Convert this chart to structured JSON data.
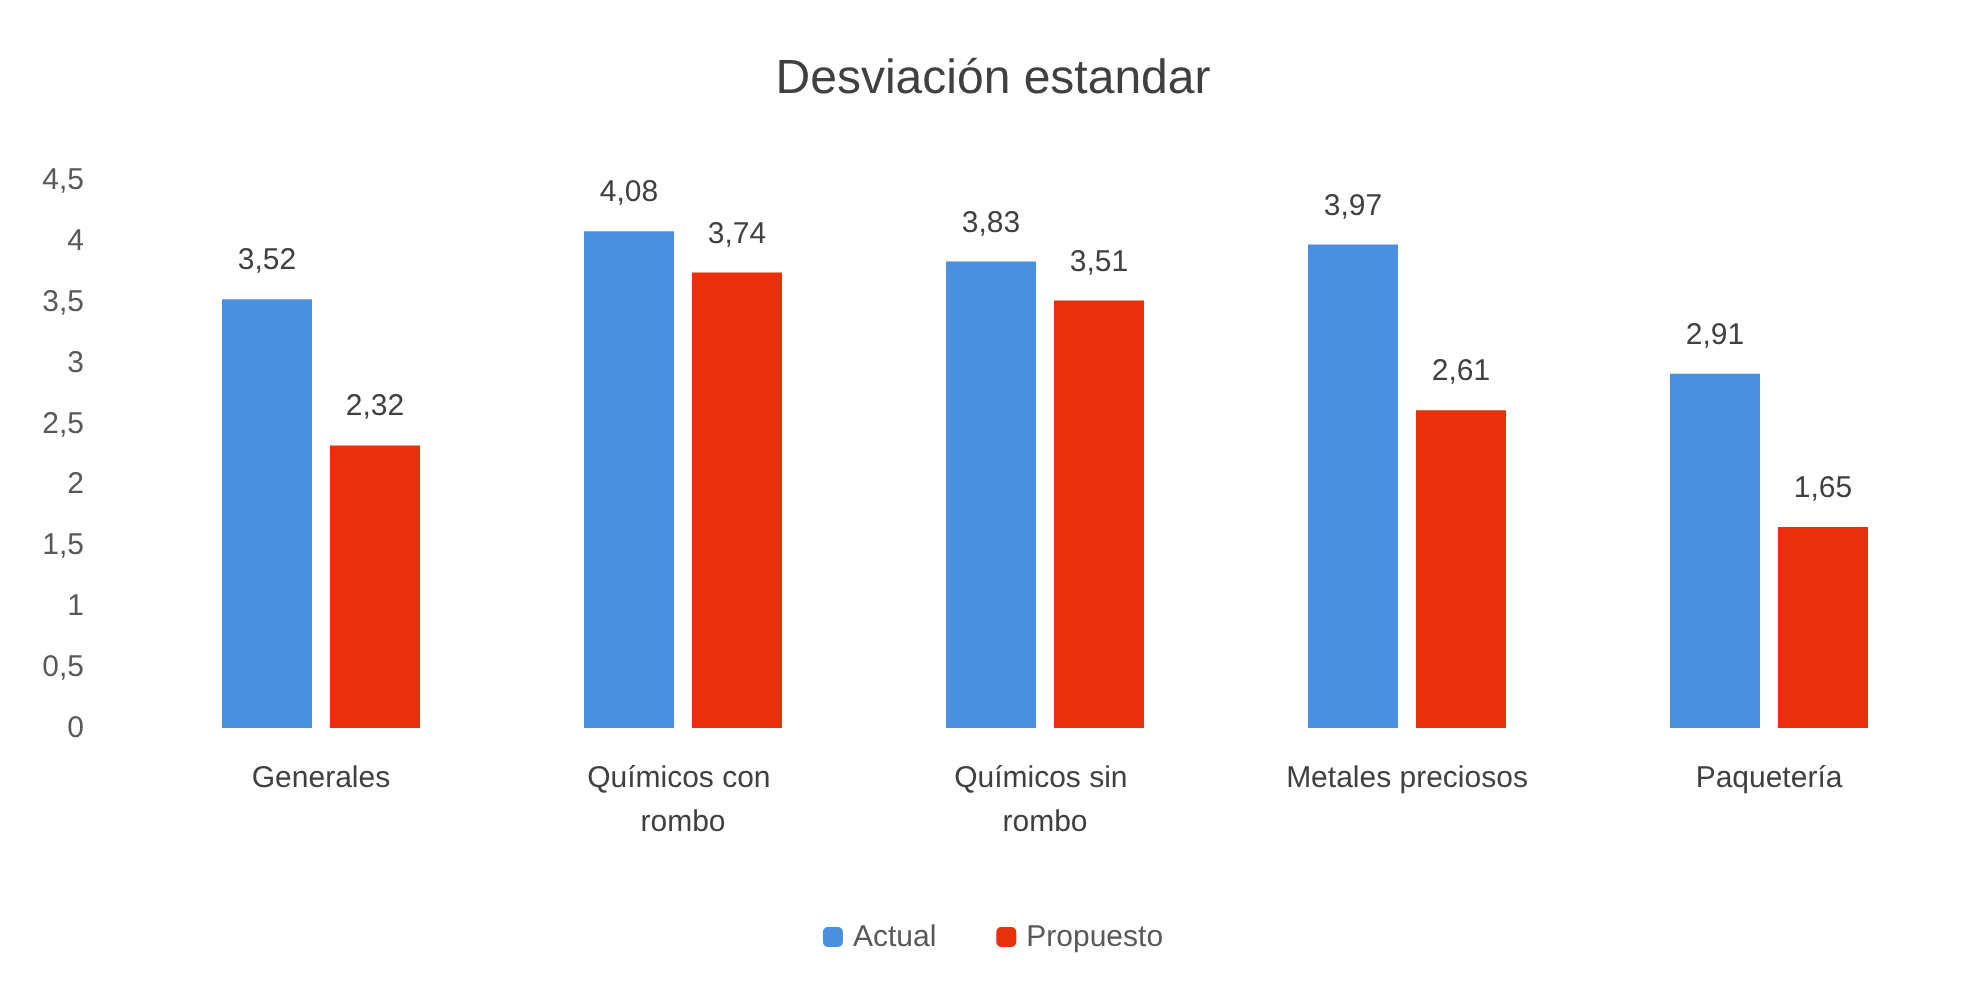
{
  "chart_data": {
    "type": "bar",
    "title": "Desviación estandar",
    "categories": [
      "Generales",
      "Químicos con rombo",
      "Químicos sin rombo",
      "Metales preciosos",
      "Paquetería"
    ],
    "series": [
      {
        "name": "Actual",
        "color": "#4a8fe0",
        "values": [
          3.52,
          4.08,
          3.83,
          3.97,
          2.91
        ],
        "value_labels": [
          "3,52",
          "4,08",
          "3,83",
          "3,97",
          "2,91"
        ]
      },
      {
        "name": "Propuesto",
        "color": "#e8300c",
        "values": [
          2.32,
          3.74,
          3.51,
          2.61,
          1.65
        ],
        "value_labels": [
          "2,32",
          "3,74",
          "3,51",
          "2,61",
          "1,65"
        ]
      }
    ],
    "ylim": [
      0,
      4.5
    ],
    "yticks": [
      0,
      {
        "value": 0.5,
        "label": "0,5"
      },
      1,
      {
        "value": 1.5,
        "label": "1,5"
      },
      2,
      {
        "value": 2.5,
        "label": "2,5"
      },
      3,
      {
        "value": 3.5,
        "label": "3,5"
      },
      4,
      {
        "value": 4.5,
        "label": "4,5"
      }
    ],
    "grid": false,
    "legend": "bottom"
  }
}
